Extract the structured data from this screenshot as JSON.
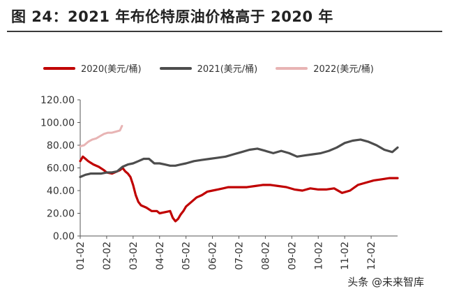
{
  "chart_data": {
    "type": "line",
    "title": "图 24：2021 年布伦特原油价格高于 2020 年",
    "xlabel": "",
    "ylabel": "",
    "x_ticks": [
      "01-02",
      "02-02",
      "03-02",
      "04-02",
      "05-02",
      "06-02",
      "07-02",
      "08-02",
      "09-02",
      "10-02",
      "11-02",
      "12-02"
    ],
    "y_ticks": [
      "0.00",
      "20.00",
      "40.00",
      "60.00",
      "80.00",
      "100.00",
      "120.00"
    ],
    "ylim": [
      0,
      120
    ],
    "xlim": [
      0,
      12
    ],
    "grid": false,
    "legend_position": "top",
    "series": [
      {
        "name": "2020(美元/桶)",
        "color": "#c00000",
        "x": [
          0,
          0.1,
          0.2,
          0.3,
          0.5,
          0.7,
          0.9,
          1.0,
          1.2,
          1.4,
          1.5,
          1.6,
          1.7,
          1.8,
          1.9,
          2.0,
          2.1,
          2.2,
          2.3,
          2.5,
          2.7,
          2.9,
          3.0,
          3.2,
          3.4,
          3.5,
          3.6,
          3.7,
          3.8,
          3.9,
          4.0,
          4.2,
          4.4,
          4.6,
          4.8,
          5.0,
          5.2,
          5.4,
          5.6,
          5.8,
          6.0,
          6.3,
          6.6,
          6.9,
          7.2,
          7.5,
          7.8,
          8.1,
          8.4,
          8.7,
          9.0,
          9.3,
          9.6,
          9.9,
          10.2,
          10.5,
          10.8,
          11.1,
          11.4,
          11.7,
          12.0
        ],
        "values": [
          66,
          70,
          68,
          66,
          63,
          61,
          58,
          56,
          55,
          57,
          58,
          60,
          57,
          55,
          52,
          45,
          36,
          30,
          27,
          25,
          22,
          22,
          20,
          21,
          22,
          16,
          13,
          15,
          19,
          22,
          26,
          30,
          34,
          36,
          39,
          40,
          41,
          42,
          43,
          43,
          43,
          43,
          44,
          45,
          45,
          44,
          43,
          41,
          40,
          42,
          41,
          41,
          42,
          38,
          40,
          45,
          47,
          49,
          50,
          51,
          51
        ]
      },
      {
        "name": "2021(美元/桶)",
        "color": "#4d4d4d",
        "x": [
          0,
          0.2,
          0.4,
          0.6,
          0.8,
          1.0,
          1.2,
          1.4,
          1.6,
          1.8,
          2.0,
          2.2,
          2.4,
          2.6,
          2.8,
          3.0,
          3.2,
          3.4,
          3.6,
          3.8,
          4.0,
          4.3,
          4.6,
          4.9,
          5.2,
          5.5,
          5.8,
          6.1,
          6.4,
          6.7,
          7.0,
          7.3,
          7.6,
          7.9,
          8.2,
          8.5,
          8.8,
          9.1,
          9.4,
          9.7,
          10.0,
          10.3,
          10.6,
          10.9,
          11.2,
          11.5,
          11.8,
          12.0
        ],
        "values": [
          52,
          54,
          55,
          55,
          55,
          56,
          56,
          57,
          61,
          63,
          64,
          66,
          68,
          68,
          64,
          64,
          63,
          62,
          62,
          63,
          64,
          66,
          67,
          68,
          69,
          70,
          72,
          74,
          76,
          77,
          75,
          73,
          75,
          73,
          70,
          71,
          72,
          73,
          75,
          78,
          82,
          84,
          85,
          83,
          80,
          76,
          74,
          78
        ]
      },
      {
        "name": "2022(美元/桶)",
        "color": "#e8b4b4",
        "x": [
          0,
          0.15,
          0.3,
          0.45,
          0.6,
          0.75,
          0.9,
          1.05,
          1.2,
          1.35,
          1.5,
          1.58
        ],
        "values": [
          79,
          80,
          83,
          85,
          86,
          88,
          90,
          91,
          91,
          92,
          93,
          97
        ]
      }
    ]
  }
}
